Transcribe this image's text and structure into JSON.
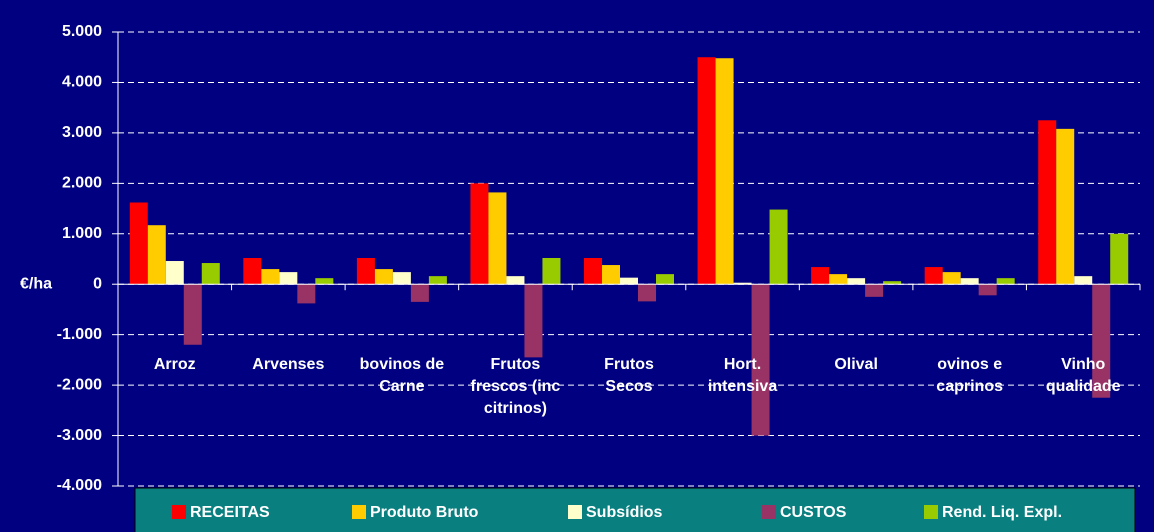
{
  "chart_data": {
    "type": "bar",
    "y_label": "€/ha",
    "categories": [
      "Arroz",
      "Arvenses",
      "bovinos de Carne",
      "Frutos frescos (inc citrinos)",
      "Frutos Secos",
      "Hort. intensiva",
      "Olival",
      "ovinos e caprinos",
      "Vinho qualidade"
    ],
    "series": [
      {
        "name": "RECEITAS",
        "color": "#ff0000",
        "values": [
          1620,
          520,
          520,
          2000,
          520,
          4500,
          340,
          340,
          3250
        ]
      },
      {
        "name": "Produto Bruto",
        "color": "#ffcc00",
        "values": [
          1170,
          300,
          300,
          1820,
          380,
          4480,
          200,
          240,
          3080
        ]
      },
      {
        "name": "Subsídios",
        "color": "#ffffcc",
        "values": [
          460,
          240,
          240,
          160,
          130,
          30,
          120,
          120,
          160
        ]
      },
      {
        "name": "CUSTOS",
        "color": "#993366",
        "values": [
          -1200,
          -380,
          -350,
          -1450,
          -340,
          -3000,
          -250,
          -220,
          -2250
        ]
      },
      {
        "name": "Rend. Liq. Expl.",
        "color": "#99cc00",
        "values": [
          420,
          120,
          160,
          520,
          200,
          1480,
          60,
          120,
          1000
        ]
      }
    ],
    "ylim": [
      -4000,
      5000
    ],
    "yticks": [
      {
        "value": -4000,
        "label": "-4.000"
      },
      {
        "value": -3000,
        "label": "-3.000"
      },
      {
        "value": -2000,
        "label": "-2.000"
      },
      {
        "value": -1000,
        "label": "-1.000"
      },
      0,
      {
        "value": 1000,
        "label": "1.000"
      },
      {
        "value": 2000,
        "label": "2.000"
      },
      {
        "value": 3000,
        "label": "3.000"
      },
      {
        "value": 4000,
        "label": "4.000"
      },
      {
        "value": 5000,
        "label": "5.000"
      }
    ],
    "grid": true,
    "legend": "bottom",
    "background": "#000080",
    "legend_background": "#0a7f80"
  }
}
